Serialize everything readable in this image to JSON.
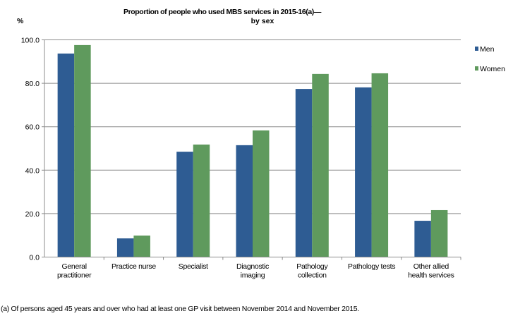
{
  "chart_data": {
    "type": "bar",
    "title": "Proportion of people who used MBS services in 2015-16(a)—",
    "subtitle": "by sex",
    "ylabel": "%",
    "xlabel": "",
    "ylim": [
      0,
      100
    ],
    "yticks": [
      "0.0",
      "20.0",
      "40.0",
      "60.0",
      "80.0",
      "100.0"
    ],
    "grid": true,
    "legend_position": "right",
    "categories": [
      [
        "General",
        "practitioner"
      ],
      [
        "Practice nurse"
      ],
      [
        "Specialist"
      ],
      [
        "Diagnostic",
        "imaging"
      ],
      [
        "Pathology",
        "collection"
      ],
      [
        "Pathology tests"
      ],
      [
        "Other allied",
        "health services"
      ]
    ],
    "series": [
      {
        "name": "Men",
        "color": "#2e5c93",
        "values": [
          93.7,
          8.6,
          48.5,
          51.5,
          77.4,
          78.1,
          16.7
        ]
      },
      {
        "name": "Women",
        "color": "#5f9a5d",
        "values": [
          97.6,
          9.9,
          51.8,
          58.3,
          84.3,
          84.6,
          21.6
        ]
      }
    ]
  },
  "footnote": "(a) Of persons aged 45 years and over who had at least one GP visit between November 2014 and November 2015."
}
